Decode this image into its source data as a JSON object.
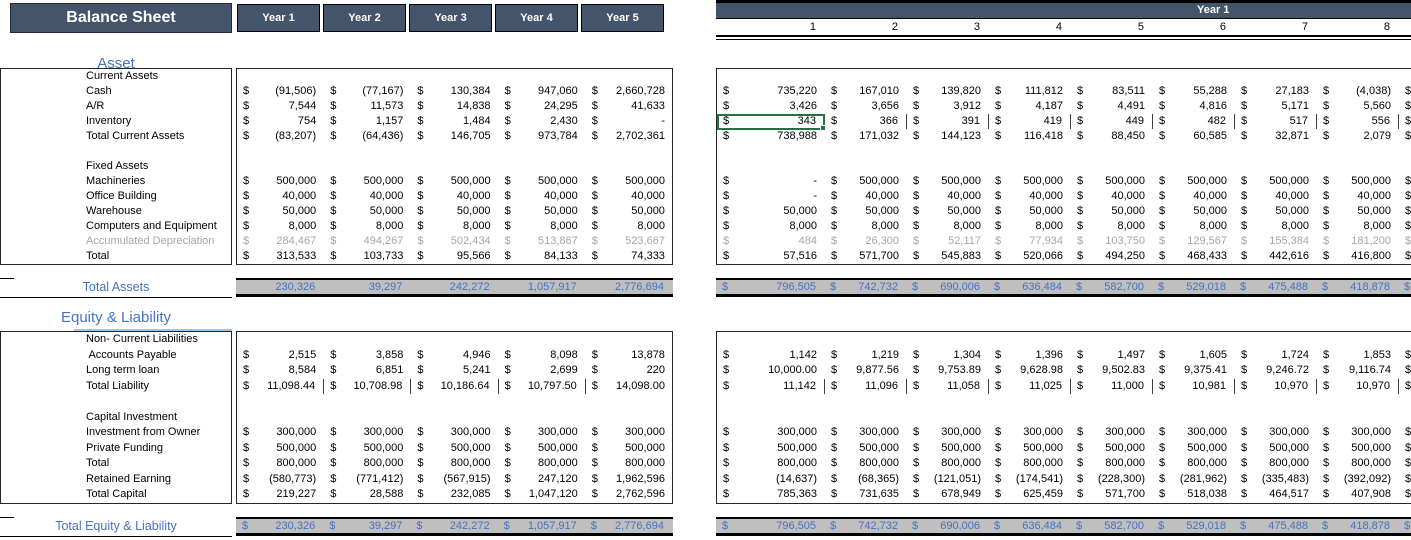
{
  "title": "Balance Sheet",
  "colors": {
    "header_bg": "#44546A",
    "band_bg": "#BFBFBF",
    "accent_blue": "#4472C4",
    "heading_underline": "#9DC3E6",
    "selection_green": "#217346",
    "muted_gray": "#A6A6A6"
  },
  "left_pane": {
    "year_headers": [
      "Year 1",
      "Year 2",
      "Year 3",
      "Year 4",
      "Year 5"
    ]
  },
  "right_pane": {
    "year_band_label": "Year 1",
    "month_headers": [
      "1",
      "2",
      "3",
      "4",
      "5",
      "6",
      "7",
      "8"
    ]
  },
  "sections": {
    "asset_heading": "Asset",
    "equity_heading": "Equity & Liability"
  },
  "asset_rows": [
    {
      "label": "Current Assets",
      "subhead": true
    },
    {
      "label": "Cash",
      "left": [
        "(91,506)",
        "(77,167)",
        "130,384",
        "947,060",
        "2,660,728"
      ],
      "right": [
        "735,220",
        "167,010",
        "139,820",
        "111,812",
        "83,511",
        "55,288",
        "27,183",
        "(4,038)"
      ]
    },
    {
      "label": "A/R",
      "left": [
        "7,544",
        "11,573",
        "14,838",
        "24,295",
        "41,633"
      ],
      "right": [
        "3,426",
        "3,656",
        "3,912",
        "4,187",
        "4,491",
        "4,816",
        "5,171",
        "5,560"
      ]
    },
    {
      "label": "Inventory",
      "sep_right": true,
      "selected_right": 0,
      "left": [
        "754",
        "1,157",
        "1,484",
        "2,430",
        "-"
      ],
      "right": [
        "343",
        "366",
        "391",
        "419",
        "449",
        "482",
        "517",
        "556"
      ]
    },
    {
      "label": "Total Current Assets",
      "left": [
        "(83,207)",
        "(64,436)",
        "146,705",
        "973,784",
        "2,702,361"
      ],
      "right": [
        "738,988",
        "171,032",
        "144,123",
        "116,418",
        "88,450",
        "60,585",
        "32,871",
        "2,079"
      ]
    },
    {
      "blank": true
    },
    {
      "label": "Fixed Assets",
      "subhead": true
    },
    {
      "label": "Machineries",
      "left": [
        "500,000",
        "500,000",
        "500,000",
        "500,000",
        "500,000"
      ],
      "right": [
        "-",
        "500,000",
        "500,000",
        "500,000",
        "500,000",
        "500,000",
        "500,000",
        "500,000"
      ]
    },
    {
      "label": "Office Building",
      "left": [
        "40,000",
        "40,000",
        "40,000",
        "40,000",
        "40,000"
      ],
      "right": [
        "-",
        "40,000",
        "40,000",
        "40,000",
        "40,000",
        "40,000",
        "40,000",
        "40,000"
      ]
    },
    {
      "label": "Warehouse",
      "left": [
        "50,000",
        "50,000",
        "50,000",
        "50,000",
        "50,000"
      ],
      "right": [
        "50,000",
        "50,000",
        "50,000",
        "50,000",
        "50,000",
        "50,000",
        "50,000",
        "50,000"
      ]
    },
    {
      "label": "Computers and Equipment",
      "left": [
        "8,000",
        "8,000",
        "8,000",
        "8,000",
        "8,000"
      ],
      "right": [
        "8,000",
        "8,000",
        "8,000",
        "8,000",
        "8,000",
        "8,000",
        "8,000",
        "8,000"
      ]
    },
    {
      "label": "Accumulated Depreciation",
      "muted": true,
      "left": [
        "284,467",
        "494,267",
        "502,434",
        "513,867",
        "523,667"
      ],
      "right": [
        "484",
        "26,300",
        "52,117",
        "77,934",
        "103,750",
        "129,567",
        "155,384",
        "181,200"
      ]
    },
    {
      "label": "Total",
      "left": [
        "313,533",
        "103,733",
        "95,566",
        "84,133",
        "74,333"
      ],
      "right": [
        "57,516",
        "571,700",
        "545,883",
        "520,066",
        "494,250",
        "468,433",
        "442,616",
        "416,800"
      ]
    }
  ],
  "liability_rows": [
    {
      "label": "Non- Current Liabilities",
      "subhead": true
    },
    {
      "label": " Accounts Payable",
      "left": [
        "2,515",
        "3,858",
        "4,946",
        "8,098",
        "13,878"
      ],
      "right": [
        "1,142",
        "1,219",
        "1,304",
        "1,396",
        "1,497",
        "1,605",
        "1,724",
        "1,853"
      ]
    },
    {
      "label": "Long term loan",
      "left": [
        "8,584",
        "6,851",
        "5,241",
        "2,699",
        "220"
      ],
      "right": [
        "10,000.00",
        "9,877.56",
        "9,753.89",
        "9,628.98",
        "9,502.83",
        "9,375.41",
        "9,246.72",
        "9,116.74"
      ]
    },
    {
      "label": "Total Liability",
      "sep_left": true,
      "sep_right": true,
      "left": [
        "11,098.44",
        "10,708.98",
        "10,186.64",
        "10,797.50",
        "14,098.00"
      ],
      "right": [
        "11,142",
        "11,096",
        "11,058",
        "11,025",
        "11,000",
        "10,981",
        "10,970",
        "10,970"
      ]
    },
    {
      "blank": true
    },
    {
      "label": "Capital Investment",
      "subhead": true
    },
    {
      "label": "Investment from Owner",
      "left": [
        "300,000",
        "300,000",
        "300,000",
        "300,000",
        "300,000"
      ],
      "right": [
        "300,000",
        "300,000",
        "300,000",
        "300,000",
        "300,000",
        "300,000",
        "300,000",
        "300,000"
      ]
    },
    {
      "label": "Private Funding",
      "left": [
        "500,000",
        "500,000",
        "500,000",
        "500,000",
        "500,000"
      ],
      "right": [
        "500,000",
        "500,000",
        "500,000",
        "500,000",
        "500,000",
        "500,000",
        "500,000",
        "500,000"
      ]
    },
    {
      "label": "Total",
      "left": [
        "800,000",
        "800,000",
        "800,000",
        "800,000",
        "800,000"
      ],
      "right": [
        "800,000",
        "800,000",
        "800,000",
        "800,000",
        "800,000",
        "800,000",
        "800,000",
        "800,000"
      ]
    },
    {
      "label": "Retained Earning",
      "left": [
        "(580,773)",
        "(771,412)",
        "(567,915)",
        "247,120",
        "1,962,596"
      ],
      "right": [
        "(14,637)",
        "(68,365)",
        "(121,051)",
        "(174,541)",
        "(228,300)",
        "(281,962)",
        "(335,483)",
        "(392,092)"
      ]
    },
    {
      "label": "Total Capital",
      "left": [
        "219,227",
        "28,588",
        "232,085",
        "1,047,120",
        "2,762,596"
      ],
      "right": [
        "785,363",
        "731,635",
        "678,949",
        "625,459",
        "571,700",
        "518,038",
        "464,517",
        "407,908"
      ]
    }
  ],
  "totals": {
    "assets": {
      "label": "Total Assets",
      "left_dollars": false,
      "left": [
        "230,326",
        "39,297",
        "242,272",
        "1,057,917",
        "2,776,694"
      ],
      "right": [
        "796,505",
        "742,732",
        "690,006",
        "636,484",
        "582,700",
        "529,018",
        "475,488",
        "418,878"
      ]
    },
    "equity": {
      "label": "Total Equity & Liability",
      "left_dollars": true,
      "left": [
        "230,326",
        "39,297",
        "242,272",
        "1,057,917",
        "2,776,694"
      ],
      "right": [
        "796,505",
        "742,732",
        "690,006",
        "636,484",
        "582,700",
        "529,018",
        "475,488",
        "418,878"
      ]
    }
  }
}
